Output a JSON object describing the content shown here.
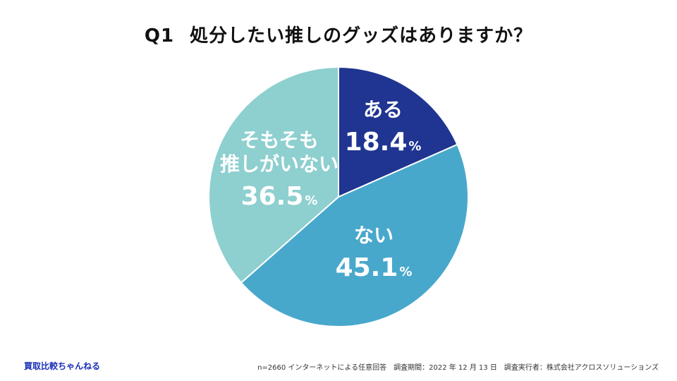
{
  "title": {
    "number": "Q1",
    "question": "処分したい推しのグッズはありますか？"
  },
  "chart_data": {
    "type": "pie",
    "title": "Q1 処分したい推しのグッズはありますか？",
    "start_angle_deg": 0,
    "direction": "clockwise",
    "slices": [
      {
        "label_lines": [
          "ある"
        ],
        "value": 18.4,
        "value_text": "18.4",
        "unit": "%",
        "color": "#1f3591"
      },
      {
        "label_lines": [
          "ない"
        ],
        "value": 45.1,
        "value_text": "45.1",
        "unit": "%",
        "color": "#48a8cc"
      },
      {
        "label_lines": [
          "そもそも",
          "推しがいない"
        ],
        "value": 36.5,
        "value_text": "36.5",
        "unit": "%",
        "color": "#8ecfcf"
      }
    ]
  },
  "footer": {
    "brand": "買取比較ちゃんねる",
    "note": "n=2660 インターネットによる任意回答　調査期間：2022 年 12 月 13 日　調査実行者：株式会社アクロスソリューションズ"
  }
}
